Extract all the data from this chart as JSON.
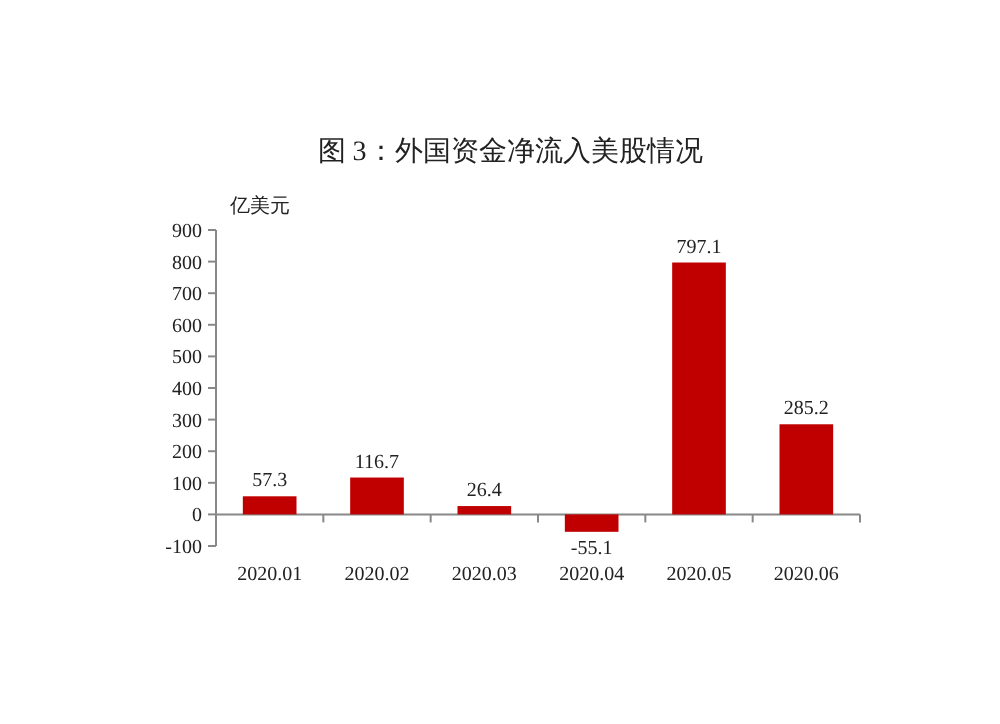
{
  "chart_data": {
    "type": "bar",
    "title": "图 3：外国资金净流入美股情况",
    "ylabel": "亿美元",
    "categories": [
      "2020.01",
      "2020.02",
      "2020.03",
      "2020.04",
      "2020.05",
      "2020.06"
    ],
    "values": [
      57.3,
      116.7,
      26.4,
      -55.1,
      797.1,
      285.2
    ],
    "color": "#c00000",
    "ylim": [
      -100,
      900
    ],
    "yticks": [
      -100,
      0,
      100,
      200,
      300,
      400,
      500,
      600,
      700,
      800,
      900
    ],
    "data_labels": true
  }
}
